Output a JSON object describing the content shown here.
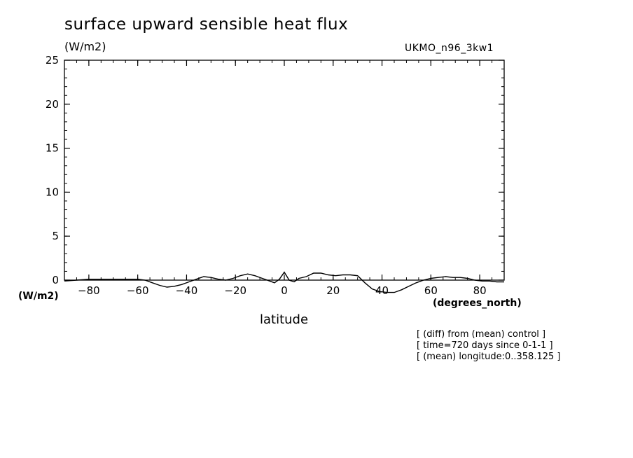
{
  "chart_data": {
    "type": "line",
    "title": "surface upward sensible heat flux",
    "yunits": "(W/m2)",
    "model": "UKMO_n96_3kw1",
    "yunits_left": "(W/m2)",
    "xunits": "(degrees_north)",
    "xlabel": "latitude",
    "xlim": [
      -90,
      90
    ],
    "ylim": [
      0,
      25
    ],
    "xticks": [
      -80,
      -60,
      -40,
      -20,
      0,
      20,
      40,
      60,
      80
    ],
    "yticks": [
      0,
      5,
      10,
      15,
      20,
      25
    ],
    "notes": [
      "[ (diff) from (mean) control ]",
      "[ time=720 days since 0-1-1 ]",
      "[ (mean) longitude:0..358.125 ]"
    ],
    "series": [
      {
        "x": [
          -90,
          -85,
          -80,
          -75,
          -70,
          -65,
          -60,
          -57,
          -54,
          -51,
          -48,
          -45,
          -42,
          -39,
          -36,
          -33,
          -30,
          -27,
          -24,
          -21,
          -18,
          -15,
          -12,
          -9,
          -6,
          -4,
          -2,
          0,
          2,
          4,
          6,
          9,
          12,
          15,
          18,
          21,
          24,
          27,
          30,
          33,
          36,
          39,
          42,
          45,
          48,
          51,
          54,
          57,
          60,
          63,
          66,
          69,
          72,
          75,
          78,
          81,
          84,
          87,
          90
        ],
        "y": [
          -0.1,
          0.0,
          0.1,
          0.1,
          0.1,
          0.1,
          0.1,
          0.0,
          -0.3,
          -0.6,
          -0.8,
          -0.7,
          -0.5,
          -0.2,
          0.1,
          0.4,
          0.3,
          0.1,
          0.0,
          0.2,
          0.5,
          0.7,
          0.5,
          0.2,
          -0.1,
          -0.3,
          0.1,
          0.9,
          0.0,
          -0.2,
          0.2,
          0.4,
          0.8,
          0.8,
          0.6,
          0.5,
          0.6,
          0.6,
          0.5,
          -0.3,
          -1.0,
          -1.3,
          -1.4,
          -1.4,
          -1.1,
          -0.7,
          -0.3,
          0.0,
          0.2,
          0.3,
          0.4,
          0.3,
          0.3,
          0.2,
          0.0,
          -0.1,
          -0.1,
          -0.2,
          -0.2
        ]
      }
    ]
  }
}
